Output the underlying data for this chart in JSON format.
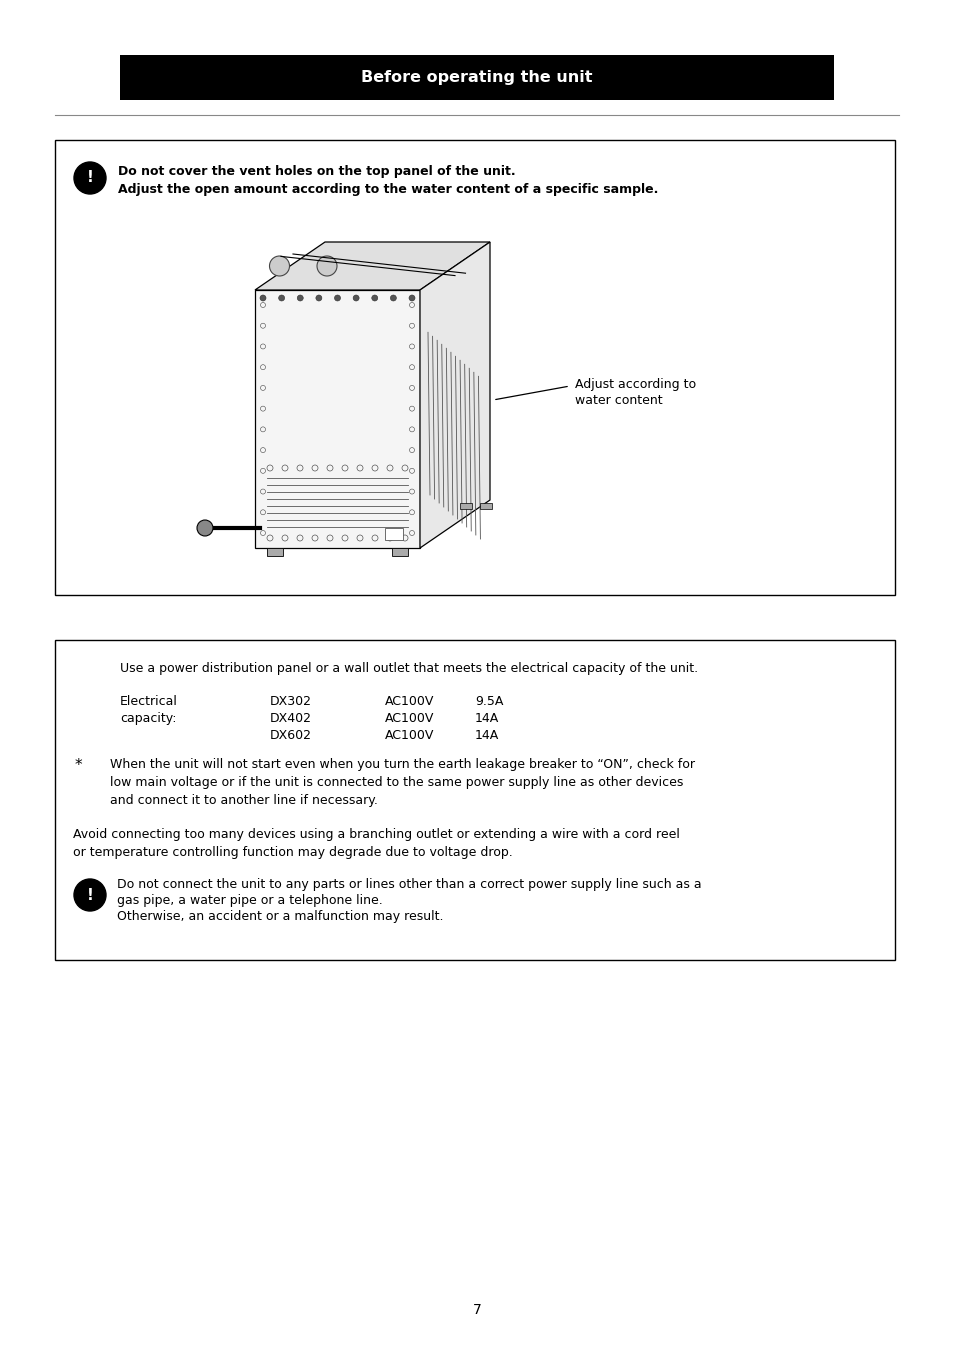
{
  "page_num": "7",
  "header_bar_color": "#000000",
  "header_text": "Before operating the unit",
  "header_text_color": "#ffffff",
  "background_color": "#ffffff",
  "text_color": "#000000",
  "box_border_color": "#000000",
  "font_size_body": 9.0,
  "font_size_header": 11.5,
  "box1_notice_text_line1": "Do not cover the vent holes on the top panel of the unit.",
  "box1_notice_text_line2": "Adjust the open amount according to the water content of a specific sample.",
  "box1_label_text": "Adjust according to\nwater content",
  "box2_text_line1": "Use a power distribution panel or a wall outlet that meets the electrical capacity of the unit.",
  "box2_elec_label_line1": "Electrical",
  "box2_elec_label_line2": "capacity:",
  "box2_models": [
    "DX302",
    "DX402",
    "DX602"
  ],
  "box2_voltages": [
    "AC100V",
    "AC100V",
    "AC100V"
  ],
  "box2_currents": [
    "9.5A",
    "14A",
    "14A"
  ],
  "box2_asterisk_text": "When the unit will not start even when you turn the earth leakage breaker to “ON”, check for\nlow main voltage or if the unit is connected to the same power supply line as other devices\nand connect it to another line if necessary.",
  "box2_avoid_text": "Avoid connecting too many devices using a branching outlet or extending a wire with a cord reel\nor temperature controlling function may degrade due to voltage drop.",
  "box2_notice_text_line1": "Do not connect the unit to any parts or lines other than a correct power supply line such as a",
  "box2_notice_text_line2": "gas pipe, a water pipe or a telephone line.",
  "box2_notice_text_line3": "Otherwise, an accident or a malfunction may result."
}
